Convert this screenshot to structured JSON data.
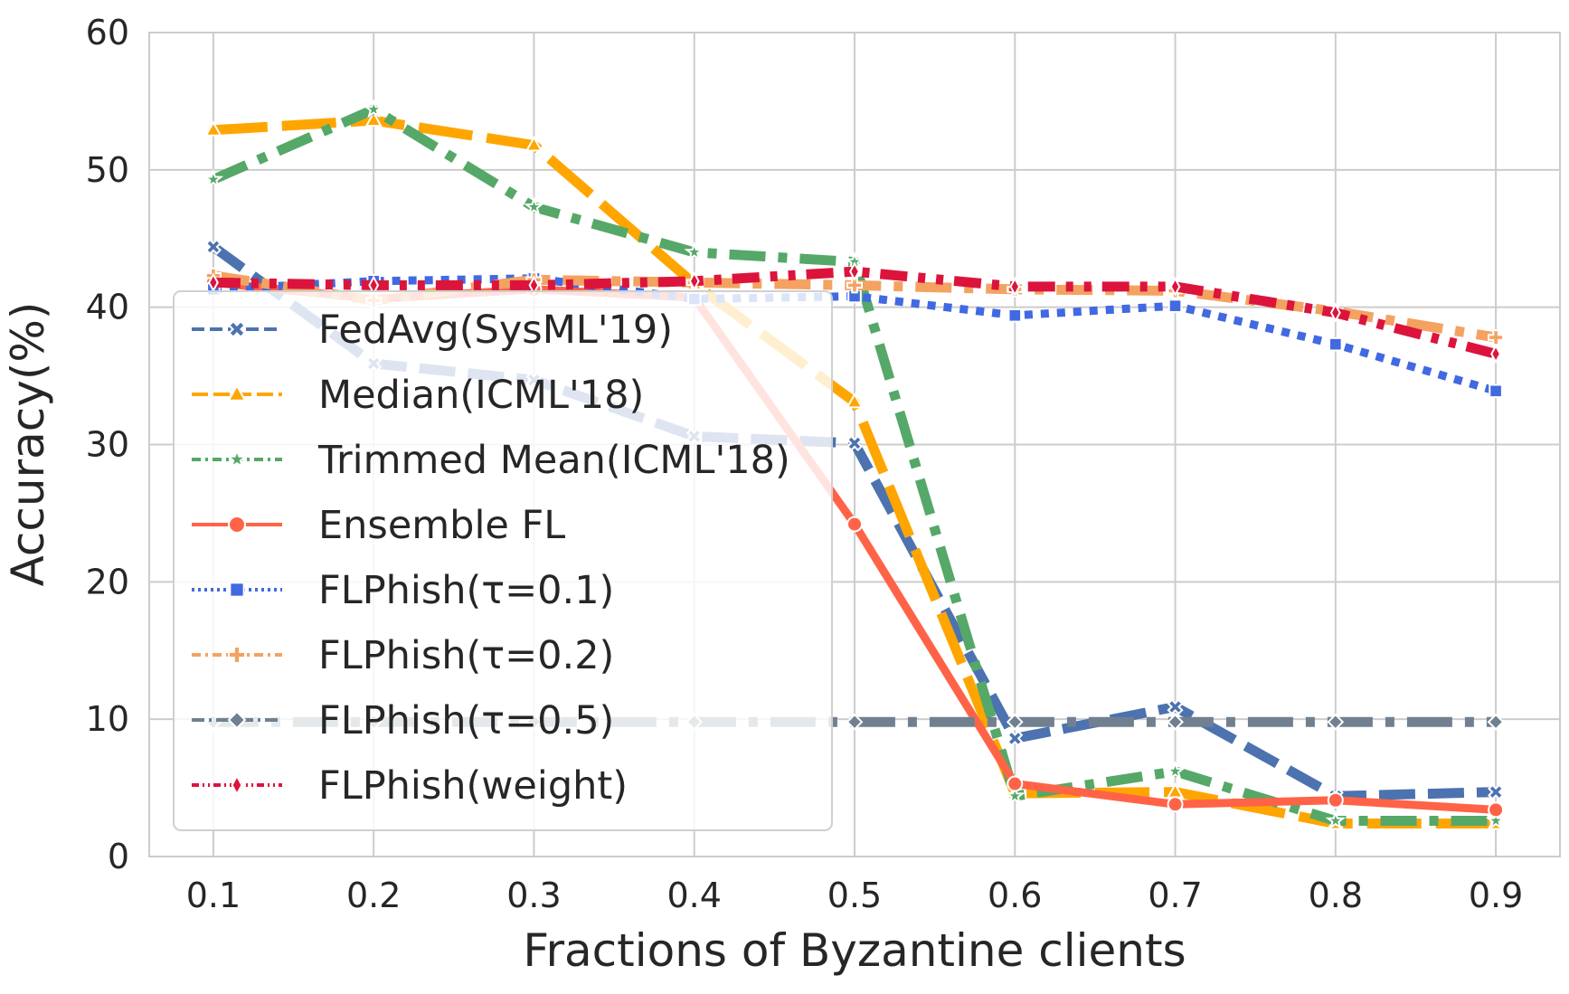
{
  "chart_data": {
    "type": "line",
    "xlabel": "Fractions of Byzantine clients",
    "ylabel": "Accuracy(%)",
    "x": [
      0.1,
      0.2,
      0.3,
      0.4,
      0.5,
      0.6,
      0.7,
      0.8,
      0.9
    ],
    "x_tick_labels": [
      "0.1",
      "0.2",
      "0.3",
      "0.4",
      "0.5",
      "0.6",
      "0.7",
      "0.8",
      "0.9"
    ],
    "y_ticks": [
      0,
      10,
      20,
      30,
      40,
      50,
      60
    ],
    "y_tick_labels": [
      "0",
      "10",
      "20",
      "30",
      "40",
      "50",
      "60"
    ],
    "xlim": [
      0.06,
      0.94
    ],
    "ylim": [
      0,
      60
    ],
    "grid": true,
    "legend_position": "center-left",
    "series": [
      {
        "name": "FedAvg(SysML'19)",
        "color": "#4c72b0",
        "dash": "dashed",
        "marker": "x-filled",
        "values": [
          44.4,
          35.9,
          34.7,
          30.6,
          30.1,
          8.6,
          10.9,
          4.4,
          4.7
        ]
      },
      {
        "name": "Median(ICML'18)",
        "color": "#ffa500",
        "dash": "long-dash",
        "marker": "triangle",
        "values": [
          52.9,
          53.6,
          51.8,
          41.7,
          33.1,
          4.6,
          4.7,
          2.4,
          2.4
        ]
      },
      {
        "name": "Trimmed Mean(ICML'18)",
        "color": "#55a868",
        "dash": "dash-dot",
        "marker": "star",
        "values": [
          49.3,
          54.4,
          47.3,
          44.0,
          43.3,
          4.4,
          6.2,
          2.6,
          2.6
        ]
      },
      {
        "name": "Ensemble FL",
        "color": "#ff6347",
        "dash": "solid",
        "marker": "circle",
        "values": [
          41.8,
          40.6,
          41.3,
          40.7,
          24.2,
          5.3,
          3.8,
          4.1,
          3.4
        ]
      },
      {
        "name": "FLPhish(τ=0.1)",
        "color": "#4169e1",
        "dash": "dotted",
        "marker": "square",
        "values": [
          41.3,
          41.9,
          42.1,
          40.6,
          40.8,
          39.4,
          40.1,
          37.3,
          33.9
        ]
      },
      {
        "name": "FLPhish(τ=0.2)",
        "color": "#f4a261",
        "dash": "dash-dot",
        "marker": "plus",
        "values": [
          42.3,
          40.5,
          42.0,
          41.8,
          41.6,
          41.3,
          41.2,
          39.7,
          37.8
        ]
      },
      {
        "name": "FLPhish(τ=0.5)",
        "color": "#708090",
        "dash": "long-dash-dot",
        "marker": "diamond",
        "values": [
          9.8,
          9.8,
          9.8,
          9.8,
          9.8,
          9.8,
          9.8,
          9.8,
          9.8
        ]
      },
      {
        "name": "FLPhish(weight)",
        "color": "#dc143c",
        "dash": "dash-dot-dot",
        "marker": "thin-diamond",
        "values": [
          41.8,
          41.6,
          41.6,
          41.9,
          42.6,
          41.5,
          41.5,
          39.6,
          36.6
        ]
      }
    ]
  }
}
